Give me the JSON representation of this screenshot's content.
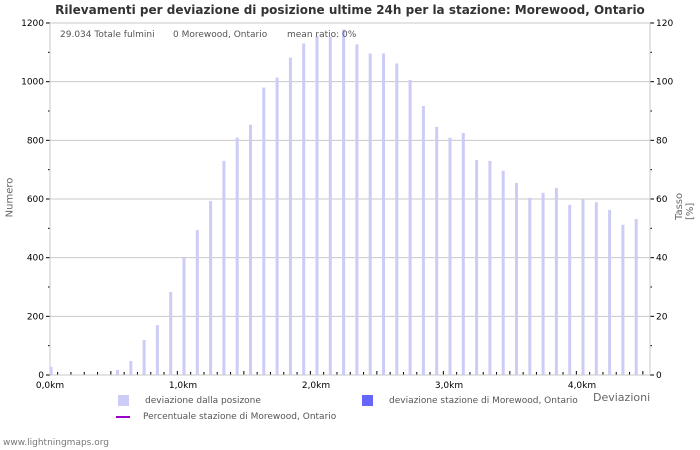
{
  "title": "Rilevamenti per deviazione di posizione ultime 24h per la stazione: Morewood, Ontario",
  "info": {
    "total": "29.034 Totale fulmini",
    "station": "0 Morewood, Ontario",
    "ratio": "mean ratio: 0%"
  },
  "axes": {
    "left_title": "Numero",
    "right_title": "Tasso [%]",
    "x_title": "Deviazioni"
  },
  "legend": {
    "item1": "deviazione dalla posizone",
    "item2": "deviazione stazione di Morewood, Ontario",
    "item3": "Percentuale stazione di Morewood, Ontario"
  },
  "colors": {
    "bar": "#ccccf7",
    "station_bar": "#6666ff",
    "line": "#9900cc",
    "grid": "#c8c8c8"
  },
  "footer": "www.lightningmaps.org",
  "chart_data": {
    "type": "bar",
    "title": "Rilevamenti per deviazione di posizione ultime 24h per la stazione: Morewood, Ontario",
    "xlabel": "Deviazioni",
    "ylabel": "Numero",
    "y2label": "Tasso [%]",
    "ylim": [
      0,
      1200
    ],
    "y2lim": [
      0,
      120
    ],
    "yticks": [
      0,
      200,
      400,
      600,
      800,
      1000,
      1200
    ],
    "y2ticks": [
      0,
      20,
      40,
      60,
      80,
      100,
      120
    ],
    "xtick_labels": [
      "0,0km",
      "1,0km",
      "2,0km",
      "3,0km",
      "4,0km"
    ],
    "grid": true,
    "legend_position": "bottom",
    "x": [
      0.0,
      0.1,
      0.2,
      0.3,
      0.4,
      0.5,
      0.6,
      0.7,
      0.8,
      0.9,
      1.0,
      1.1,
      1.2,
      1.3,
      1.4,
      1.5,
      1.6,
      1.7,
      1.8,
      1.9,
      2.0,
      2.1,
      2.2,
      2.3,
      2.4,
      2.5,
      2.6,
      2.7,
      2.8,
      2.9,
      3.0,
      3.1,
      3.2,
      3.3,
      3.4,
      3.5,
      3.6,
      3.7,
      3.8,
      3.9,
      4.0,
      4.1,
      4.2,
      4.3,
      4.4
    ],
    "series": [
      {
        "name": "deviazione dalla posizone",
        "values": [
          28,
          0,
          0,
          0,
          2,
          17,
          48,
          119,
          170,
          283,
          399,
          494,
          593,
          730,
          809,
          853,
          980,
          1014,
          1082,
          1130,
          1155,
          1152,
          1178,
          1127,
          1096,
          1096,
          1062,
          1006,
          917,
          846,
          809,
          825,
          733,
          730,
          696,
          655,
          604,
          621,
          638,
          580,
          599,
          589,
          563,
          512,
          532
        ]
      },
      {
        "name": "deviazione stazione di Morewood, Ontario",
        "values": [
          0,
          0,
          0,
          0,
          0,
          0,
          0,
          0,
          0,
          0,
          0,
          0,
          0,
          0,
          0,
          0,
          0,
          0,
          0,
          0,
          0,
          0,
          0,
          0,
          0,
          0,
          0,
          0,
          0,
          0,
          0,
          0,
          0,
          0,
          0,
          0,
          0,
          0,
          0,
          0,
          0,
          0,
          0,
          0,
          0
        ]
      },
      {
        "name": "Percentuale stazione di Morewood, Ontario",
        "axis": "right",
        "values": [
          0,
          0,
          0,
          0,
          0,
          0,
          0,
          0,
          0,
          0,
          0,
          0,
          0,
          0,
          0,
          0,
          0,
          0,
          0,
          0,
          0,
          0,
          0,
          0,
          0,
          0,
          0,
          0,
          0,
          0,
          0,
          0,
          0,
          0,
          0,
          0,
          0,
          0,
          0,
          0,
          0,
          0,
          0,
          0,
          0
        ]
      }
    ]
  }
}
